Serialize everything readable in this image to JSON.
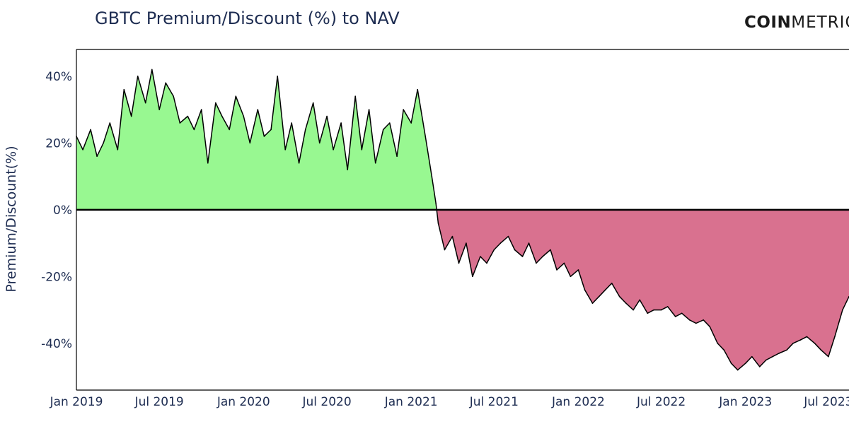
{
  "logo": {
    "bold": "COIN",
    "light": "METRICS"
  },
  "colors": {
    "positive_fill": "#98f891",
    "negative_fill": "#d9718f",
    "line": "#000000",
    "text": "#1e2d52"
  },
  "chart_data": {
    "type": "area",
    "title": "GBTC Premium/Discount (%) to NAV",
    "xlabel": "",
    "ylabel": "Premium/Discount(%)",
    "ylim": [
      -54,
      48
    ],
    "xlim": [
      "2019-01-01",
      "2023-08-15"
    ],
    "y_ticks": [
      {
        "value": 40,
        "label": "40%"
      },
      {
        "value": 20,
        "label": "20%"
      },
      {
        "value": 0,
        "label": "0%"
      },
      {
        "value": -20,
        "label": "-20%"
      },
      {
        "value": -40,
        "label": "-40%"
      }
    ],
    "x_ticks": [
      {
        "date": "2019-01-01",
        "label": "Jan 2019"
      },
      {
        "date": "2019-07-01",
        "label": "Jul 2019"
      },
      {
        "date": "2020-01-01",
        "label": "Jan 2020"
      },
      {
        "date": "2020-07-01",
        "label": "Jul 2020"
      },
      {
        "date": "2021-01-01",
        "label": "Jan 2021"
      },
      {
        "date": "2021-07-01",
        "label": "Jul 2021"
      },
      {
        "date": "2022-01-01",
        "label": "Jan 2022"
      },
      {
        "date": "2022-07-01",
        "label": "Jul 2022"
      },
      {
        "date": "2023-01-01",
        "label": "Jan 2023"
      },
      {
        "date": "2023-07-01",
        "label": "Jul 2023"
      }
    ],
    "grid": false,
    "series": [
      {
        "x": [
          "2019-01-01",
          "2019-01-15",
          "2019-02-01",
          "2019-02-15",
          "2019-03-01",
          "2019-03-15",
          "2019-04-01",
          "2019-04-15",
          "2019-05-01",
          "2019-05-15",
          "2019-06-01",
          "2019-06-15",
          "2019-07-01",
          "2019-07-15",
          "2019-08-01",
          "2019-08-15",
          "2019-09-01",
          "2019-09-15",
          "2019-10-01",
          "2019-10-15",
          "2019-11-01",
          "2019-11-15",
          "2019-12-01",
          "2019-12-15",
          "2020-01-01",
          "2020-01-15",
          "2020-02-01",
          "2020-02-15",
          "2020-03-01",
          "2020-03-15",
          "2020-04-01",
          "2020-04-15",
          "2020-05-01",
          "2020-05-15",
          "2020-06-01",
          "2020-06-15",
          "2020-07-01",
          "2020-07-15",
          "2020-08-01",
          "2020-08-15",
          "2020-09-01",
          "2020-09-15",
          "2020-10-01",
          "2020-10-15",
          "2020-11-01",
          "2020-11-15",
          "2020-12-01",
          "2020-12-15",
          "2021-01-01",
          "2021-01-15",
          "2021-02-01",
          "2021-02-15",
          "2021-02-24",
          "2021-03-01",
          "2021-03-15",
          "2021-04-01",
          "2021-04-15",
          "2021-05-01",
          "2021-05-15",
          "2021-06-01",
          "2021-06-15",
          "2021-07-01",
          "2021-07-15",
          "2021-08-01",
          "2021-08-15",
          "2021-09-01",
          "2021-09-15",
          "2021-10-01",
          "2021-10-15",
          "2021-11-01",
          "2021-11-15",
          "2021-12-01",
          "2021-12-15",
          "2022-01-01",
          "2022-01-15",
          "2022-02-01",
          "2022-02-15",
          "2022-03-01",
          "2022-03-15",
          "2022-04-01",
          "2022-04-15",
          "2022-05-01",
          "2022-05-15",
          "2022-06-01",
          "2022-06-15",
          "2022-07-01",
          "2022-07-15",
          "2022-08-01",
          "2022-08-15",
          "2022-09-01",
          "2022-09-15",
          "2022-10-01",
          "2022-10-15",
          "2022-11-01",
          "2022-11-15",
          "2022-12-01",
          "2022-12-15",
          "2023-01-01",
          "2023-01-15",
          "2023-02-01",
          "2023-02-15",
          "2023-03-01",
          "2023-03-15",
          "2023-04-01",
          "2023-04-15",
          "2023-05-01",
          "2023-05-15",
          "2023-06-01",
          "2023-06-15",
          "2023-07-01",
          "2023-07-15",
          "2023-08-01",
          "2023-08-15"
        ],
        "y": [
          22,
          18,
          24,
          16,
          20,
          26,
          18,
          36,
          28,
          40,
          32,
          42,
          30,
          38,
          34,
          26,
          28,
          24,
          30,
          14,
          32,
          28,
          24,
          34,
          28,
          20,
          30,
          22,
          24,
          40,
          18,
          26,
          14,
          24,
          32,
          20,
          28,
          18,
          26,
          12,
          34,
          18,
          30,
          14,
          24,
          26,
          16,
          30,
          26,
          36,
          22,
          10,
          2,
          -4,
          -12,
          -8,
          -16,
          -10,
          -20,
          -14,
          -16,
          -12,
          -10,
          -8,
          -12,
          -14,
          -10,
          -16,
          -14,
          -12,
          -18,
          -16,
          -20,
          -18,
          -24,
          -28,
          -26,
          -24,
          -22,
          -26,
          -28,
          -30,
          -27,
          -31,
          -30,
          -30,
          -29,
          -32,
          -31,
          -33,
          -34,
          -33,
          -35,
          -40,
          -42,
          -46,
          -48,
          -46,
          -44,
          -47,
          -45,
          -44,
          -43,
          -42,
          -40,
          -39,
          -38,
          -40,
          -42,
          -44,
          -38,
          -30,
          -26
        ]
      }
    ]
  }
}
